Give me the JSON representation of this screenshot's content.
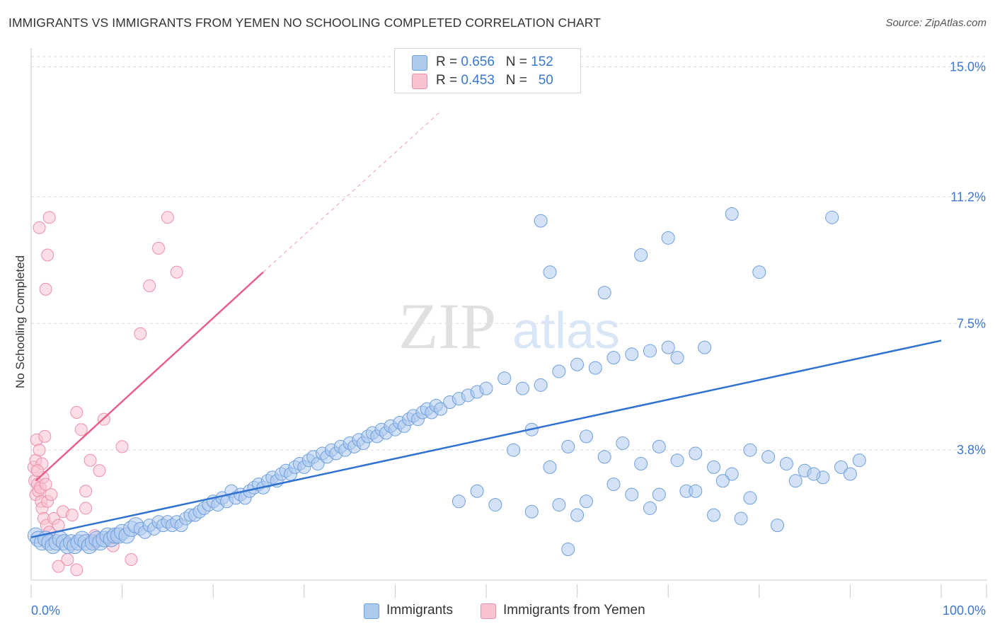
{
  "header": {
    "title": "IMMIGRANTS VS IMMIGRANTS FROM YEMEN NO SCHOOLING COMPLETED CORRELATION CHART",
    "source": "Source: ZipAtlas.com"
  },
  "watermark": {
    "zip": "ZIP",
    "atlas": "atlas"
  },
  "colors": {
    "blue_fill": "#aecbee",
    "blue_stroke": "#6f9fdc",
    "blue_line": "#2f72d0",
    "pink_fill": "#f7c3d1",
    "pink_stroke": "#ec8fab",
    "pink_line": "#e8608a",
    "axis_label": "#3b78d0",
    "grid": "#dddddd"
  },
  "legend_top": [
    {
      "r_label": "R = ",
      "r_value": "0.656",
      "n_label": "N = ",
      "n_value": "152"
    },
    {
      "r_label": "R = ",
      "r_value": "0.453",
      "n_label": "N = ",
      "n_value": "50"
    }
  ],
  "chart_data": {
    "type": "scatter",
    "title": "IMMIGRANTS VS IMMIGRANTS FROM YEMEN NO SCHOOLING COMPLETED CORRELATION CHART",
    "xlabel": "",
    "ylabel": "No Schooling Completed",
    "xlim": [
      0,
      100
    ],
    "ylim": [
      0,
      15.3
    ],
    "x_tick_labels": [
      "0.0%",
      "100.0%"
    ],
    "y_ticks": [
      3.8,
      7.5,
      11.2,
      15.0
    ],
    "y_tick_labels": [
      "3.8%",
      "7.5%",
      "11.2%",
      "15.0%"
    ],
    "grid": true,
    "legend_position": "top-center and bottom",
    "series": [
      {
        "name": "Immigrants",
        "r": 0.656,
        "n": 152,
        "trend": {
          "x": [
            0,
            100
          ],
          "y": [
            1.25,
            7.0
          ]
        },
        "points": [
          [
            0.5,
            1.3
          ],
          [
            0.8,
            1.2
          ],
          [
            1.2,
            1.1
          ],
          [
            1.6,
            1.2
          ],
          [
            2.0,
            1.1
          ],
          [
            2.4,
            1.0
          ],
          [
            2.8,
            1.1
          ],
          [
            3.2,
            1.2
          ],
          [
            3.6,
            1.1
          ],
          [
            4.0,
            1.0
          ],
          [
            4.4,
            1.1
          ],
          [
            4.8,
            1.0
          ],
          [
            5.2,
            1.1
          ],
          [
            5.6,
            1.2
          ],
          [
            6.0,
            1.1
          ],
          [
            6.4,
            1.0
          ],
          [
            6.8,
            1.1
          ],
          [
            7.2,
            1.2
          ],
          [
            7.6,
            1.1
          ],
          [
            8.0,
            1.2
          ],
          [
            8.4,
            1.3
          ],
          [
            8.8,
            1.2
          ],
          [
            9.2,
            1.3
          ],
          [
            9.6,
            1.3
          ],
          [
            10.0,
            1.4
          ],
          [
            10.5,
            1.3
          ],
          [
            11.0,
            1.5
          ],
          [
            11.5,
            1.6
          ],
          [
            12.0,
            1.5
          ],
          [
            12.5,
            1.4
          ],
          [
            13.0,
            1.6
          ],
          [
            13.5,
            1.5
          ],
          [
            14.0,
            1.7
          ],
          [
            14.5,
            1.6
          ],
          [
            15.0,
            1.7
          ],
          [
            15.5,
            1.6
          ],
          [
            16.0,
            1.7
          ],
          [
            16.5,
            1.6
          ],
          [
            17.0,
            1.8
          ],
          [
            17.5,
            1.9
          ],
          [
            18.0,
            1.9
          ],
          [
            18.5,
            2.0
          ],
          [
            19.0,
            2.1
          ],
          [
            19.5,
            2.2
          ],
          [
            20.0,
            2.3
          ],
          [
            20.5,
            2.2
          ],
          [
            21.0,
            2.4
          ],
          [
            21.5,
            2.3
          ],
          [
            22.0,
            2.6
          ],
          [
            22.5,
            2.4
          ],
          [
            23.0,
            2.5
          ],
          [
            23.5,
            2.4
          ],
          [
            24.0,
            2.6
          ],
          [
            24.5,
            2.7
          ],
          [
            25.0,
            2.8
          ],
          [
            25.5,
            2.7
          ],
          [
            26.0,
            2.9
          ],
          [
            26.5,
            3.0
          ],
          [
            27.0,
            2.9
          ],
          [
            27.5,
            3.1
          ],
          [
            28.0,
            3.2
          ],
          [
            28.5,
            3.1
          ],
          [
            29.0,
            3.3
          ],
          [
            29.5,
            3.4
          ],
          [
            30.0,
            3.3
          ],
          [
            30.5,
            3.5
          ],
          [
            31.0,
            3.6
          ],
          [
            31.5,
            3.4
          ],
          [
            32.0,
            3.7
          ],
          [
            32.5,
            3.6
          ],
          [
            33.0,
            3.8
          ],
          [
            33.5,
            3.7
          ],
          [
            34.0,
            3.9
          ],
          [
            34.5,
            3.8
          ],
          [
            35.0,
            4.0
          ],
          [
            35.5,
            3.9
          ],
          [
            36.0,
            4.1
          ],
          [
            36.5,
            4.0
          ],
          [
            37.0,
            4.2
          ],
          [
            37.5,
            4.3
          ],
          [
            38.0,
            4.2
          ],
          [
            38.5,
            4.4
          ],
          [
            39.0,
            4.3
          ],
          [
            39.5,
            4.5
          ],
          [
            40.0,
            4.4
          ],
          [
            40.5,
            4.6
          ],
          [
            41.0,
            4.5
          ],
          [
            41.5,
            4.7
          ],
          [
            42.0,
            4.8
          ],
          [
            42.5,
            4.7
          ],
          [
            43.0,
            4.9
          ],
          [
            43.5,
            5.0
          ],
          [
            44.0,
            4.9
          ],
          [
            44.5,
            5.1
          ],
          [
            45.0,
            5.0
          ],
          [
            46.0,
            5.2
          ],
          [
            47.0,
            5.3
          ],
          [
            48.0,
            5.4
          ],
          [
            49.0,
            5.5
          ],
          [
            50.0,
            5.6
          ],
          [
            52.0,
            5.9
          ],
          [
            54.0,
            5.6
          ],
          [
            56.0,
            5.7
          ],
          [
            58.0,
            6.1
          ],
          [
            60.0,
            6.3
          ],
          [
            62.0,
            6.2
          ],
          [
            64.0,
            6.5
          ],
          [
            66.0,
            6.6
          ],
          [
            68.0,
            6.7
          ],
          [
            70.0,
            6.8
          ],
          [
            53.0,
            3.8
          ],
          [
            55.0,
            4.4
          ],
          [
            57.0,
            3.3
          ],
          [
            59.0,
            3.9
          ],
          [
            61.0,
            4.2
          ],
          [
            63.0,
            3.6
          ],
          [
            65.0,
            4.0
          ],
          [
            67.0,
            3.4
          ],
          [
            69.0,
            3.9
          ],
          [
            71.0,
            3.5
          ],
          [
            73.0,
            3.7
          ],
          [
            75.0,
            3.3
          ],
          [
            77.0,
            3.1
          ],
          [
            79.0,
            3.8
          ],
          [
            81.0,
            3.6
          ],
          [
            83.0,
            3.4
          ],
          [
            85.0,
            3.2
          ],
          [
            87.0,
            3.0
          ],
          [
            89.0,
            3.3
          ],
          [
            91.0,
            3.5
          ],
          [
            56.0,
            10.5
          ],
          [
            57.0,
            9.0
          ],
          [
            63.0,
            8.4
          ],
          [
            67.0,
            9.5
          ],
          [
            70.0,
            10.0
          ],
          [
            77.0,
            10.7
          ],
          [
            80.0,
            9.0
          ],
          [
            88.0,
            10.6
          ],
          [
            71.0,
            6.5
          ],
          [
            74.0,
            6.8
          ],
          [
            58.0,
            2.2
          ],
          [
            60.0,
            1.9
          ],
          [
            61.0,
            2.3
          ],
          [
            66.0,
            2.5
          ],
          [
            68.0,
            2.1
          ],
          [
            72.0,
            2.6
          ],
          [
            75.0,
            1.9
          ],
          [
            78.0,
            1.8
          ],
          [
            82.0,
            1.6
          ],
          [
            55.0,
            2.0
          ],
          [
            47.0,
            2.3
          ],
          [
            49.0,
            2.6
          ],
          [
            51.0,
            2.2
          ],
          [
            59.0,
            0.9
          ],
          [
            64.0,
            2.8
          ],
          [
            69.0,
            2.5
          ],
          [
            73.0,
            2.6
          ],
          [
            76.0,
            2.9
          ],
          [
            79.0,
            2.4
          ],
          [
            84.0,
            2.9
          ],
          [
            86.0,
            3.1
          ],
          [
            90.0,
            3.1
          ]
        ]
      },
      {
        "name": "Immigrants from Yemen",
        "r": 0.453,
        "n": 50,
        "trend": {
          "x": [
            0.5,
            25.5
          ],
          "y": [
            2.9,
            9.0
          ]
        },
        "trend_dashed_extension": {
          "x": [
            25.5,
            45.0
          ],
          "y": [
            9.0,
            13.7
          ]
        },
        "points": [
          [
            0.3,
            3.3
          ],
          [
            0.4,
            2.9
          ],
          [
            0.5,
            2.5
          ],
          [
            0.5,
            3.5
          ],
          [
            0.6,
            4.1
          ],
          [
            0.7,
            2.8
          ],
          [
            0.8,
            2.6
          ],
          [
            0.9,
            3.8
          ],
          [
            1.0,
            2.7
          ],
          [
            1.1,
            2.3
          ],
          [
            1.2,
            2.1
          ],
          [
            1.3,
            3.0
          ],
          [
            1.4,
            1.8
          ],
          [
            1.5,
            4.2
          ],
          [
            1.6,
            2.8
          ],
          [
            1.7,
            1.6
          ],
          [
            1.8,
            2.3
          ],
          [
            2.0,
            1.4
          ],
          [
            2.2,
            2.5
          ],
          [
            2.5,
            1.8
          ],
          [
            3.0,
            1.6
          ],
          [
            3.5,
            2.0
          ],
          [
            4.0,
            0.6
          ],
          [
            4.5,
            1.9
          ],
          [
            5.0,
            4.9
          ],
          [
            5.5,
            4.4
          ],
          [
            6.0,
            2.6
          ],
          [
            6.5,
            3.5
          ],
          [
            7.0,
            1.3
          ],
          [
            7.5,
            3.2
          ],
          [
            8.0,
            4.7
          ],
          [
            8.5,
            1.2
          ],
          [
            9.0,
            1.0
          ],
          [
            10.0,
            3.9
          ],
          [
            11.0,
            0.6
          ],
          [
            12.0,
            7.2
          ],
          [
            13.0,
            8.6
          ],
          [
            14.0,
            9.7
          ],
          [
            15.0,
            10.6
          ],
          [
            16.0,
            9.0
          ],
          [
            1.8,
            9.5
          ],
          [
            2.0,
            10.6
          ],
          [
            1.6,
            8.5
          ],
          [
            3.0,
            0.4
          ],
          [
            5.0,
            0.3
          ],
          [
            6.0,
            2.1
          ],
          [
            7.0,
            1.1
          ],
          [
            0.9,
            10.3
          ],
          [
            1.2,
            3.4
          ],
          [
            0.7,
            3.2
          ]
        ]
      }
    ]
  },
  "legend_bottom": [
    {
      "label": "Immigrants"
    },
    {
      "label": "Immigrants from Yemen"
    }
  ]
}
